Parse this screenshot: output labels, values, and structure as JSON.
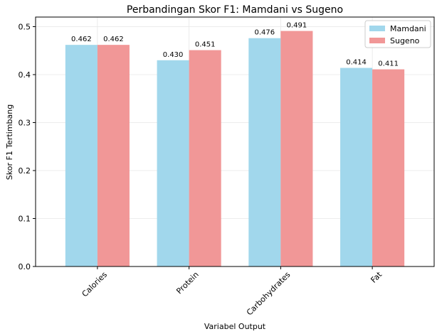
{
  "chart_data": {
    "type": "bar",
    "title": "Perbandingan Skor F1: Mamdani vs Sugeno",
    "xlabel": "Variabel Output",
    "ylabel": "Skor F1 Tertimbang",
    "categories": [
      "Calories",
      "Protein",
      "Carbohydrates",
      "Fat"
    ],
    "series": [
      {
        "name": "Mamdani",
        "values": [
          0.462,
          0.43,
          0.476,
          0.414
        ],
        "labels": [
          "0.462",
          "0.430",
          "0.476",
          "0.414"
        ],
        "color": "#a1d7ec"
      },
      {
        "name": "Sugeno",
        "values": [
          0.462,
          0.451,
          0.491,
          0.411
        ],
        "labels": [
          "0.462",
          "0.451",
          "0.491",
          "0.411"
        ],
        "color": "#f19797"
      }
    ],
    "ylim": [
      0,
      0.52
    ],
    "yticks": [
      0.0,
      0.1,
      0.2,
      0.3,
      0.4,
      0.5
    ],
    "ytick_labels": [
      "0.0",
      "0.1",
      "0.2",
      "0.3",
      "0.4",
      "0.5"
    ],
    "grid": true,
    "legend_position": "top-right"
  }
}
